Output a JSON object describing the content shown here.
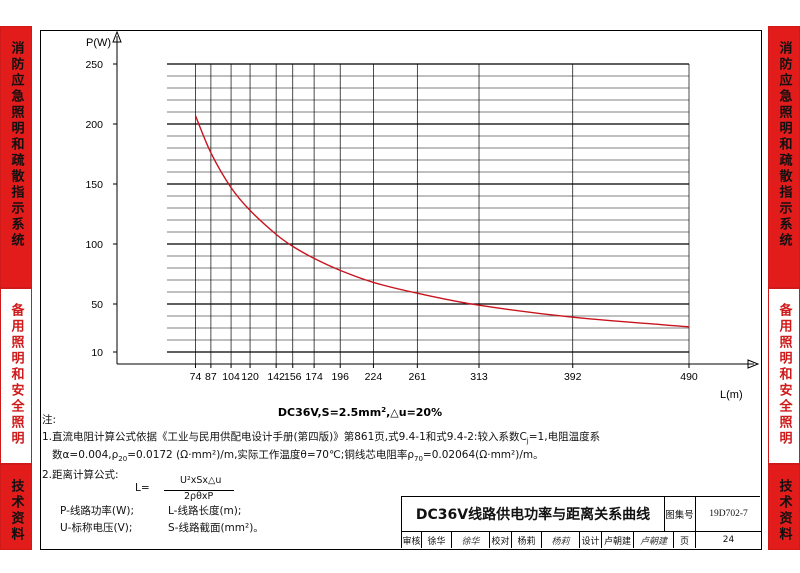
{
  "sidebar_left": [
    {
      "text": "消防应急照明和疏散指示系统",
      "style": "red"
    },
    {
      "text": "备用照明和安全照明",
      "style": "white"
    },
    {
      "text": "技术资料",
      "style": "red"
    }
  ],
  "sidebar_right": [
    {
      "text": "消防应急照明和疏散指示系统",
      "style": "red"
    },
    {
      "text": "备用照明和安全照明",
      "style": "white"
    },
    {
      "text": "技术资料",
      "style": "red"
    }
  ],
  "chart_data": {
    "type": "line",
    "ylabel": "P(W)",
    "xlabel": "L(m)",
    "caption_prefix": "DC36V,S=2.5mm",
    "caption_sup": "2",
    "caption_suffix": ",△u=20%",
    "x_ticks": [
      74,
      87,
      104,
      120,
      142,
      156,
      174,
      196,
      224,
      261,
      313,
      392,
      490
    ],
    "y_ticks": [
      10,
      50,
      100,
      150,
      200,
      250
    ],
    "xlim": [
      50,
      500
    ],
    "ylim": [
      0,
      250
    ],
    "series": [
      {
        "x": [
          74,
          87,
          104,
          120,
          142,
          156,
          174,
          196,
          224,
          261,
          313,
          392,
          490
        ],
        "y": [
          207,
          176,
          147,
          128,
          108,
          98,
          88,
          78,
          68,
          59,
          49,
          39,
          31
        ]
      }
    ],
    "colors": {
      "curve": "#c8141e",
      "grid": "#000000"
    }
  },
  "notes": {
    "head": "注:",
    "line1": "1.直流电阻计算公式依据《工业与民用供配电设计手册(第四版)》第861页,式9.4-1和式9.4-2:较入系数C",
    "line1_sub": "j",
    "line1_tail": "=1,电阻温度系",
    "line2_a": "数α=0.004,ρ",
    "line2_sub1": "20",
    "line2_b": "=0.0172 (Ω·mm²)/m,实际工作温度θ=70℃;铜线芯电阻率ρ",
    "line2_sub2": "70",
    "line2_c": "=0.02064(Ω·mm²)/m。",
    "line3": "2.距离计算公式:",
    "formula_lhs": "L=",
    "formula_num": "U²xSx△u",
    "formula_den": "2ρθxP",
    "def1": "P-线路功率(W);",
    "def2": "L-线路长度(m);",
    "def3": "U-标称电压(V);",
    "def4": "S-线路截面(mm²)。"
  },
  "titleblock": {
    "title": "DC36V线路供电功率与距离关系曲线",
    "atlas_label": "图集号",
    "atlas_no": "19D702-7",
    "review_label": "审核",
    "reviewer": "徐华",
    "reviewer_sign": "徐华",
    "check_label": "校对",
    "checker": "杨莉",
    "checker_sign": "杨莉",
    "design_label": "设计",
    "designer": "卢朝建",
    "designer_sign": "卢朝建",
    "page_label": "页",
    "page_no": "24"
  }
}
